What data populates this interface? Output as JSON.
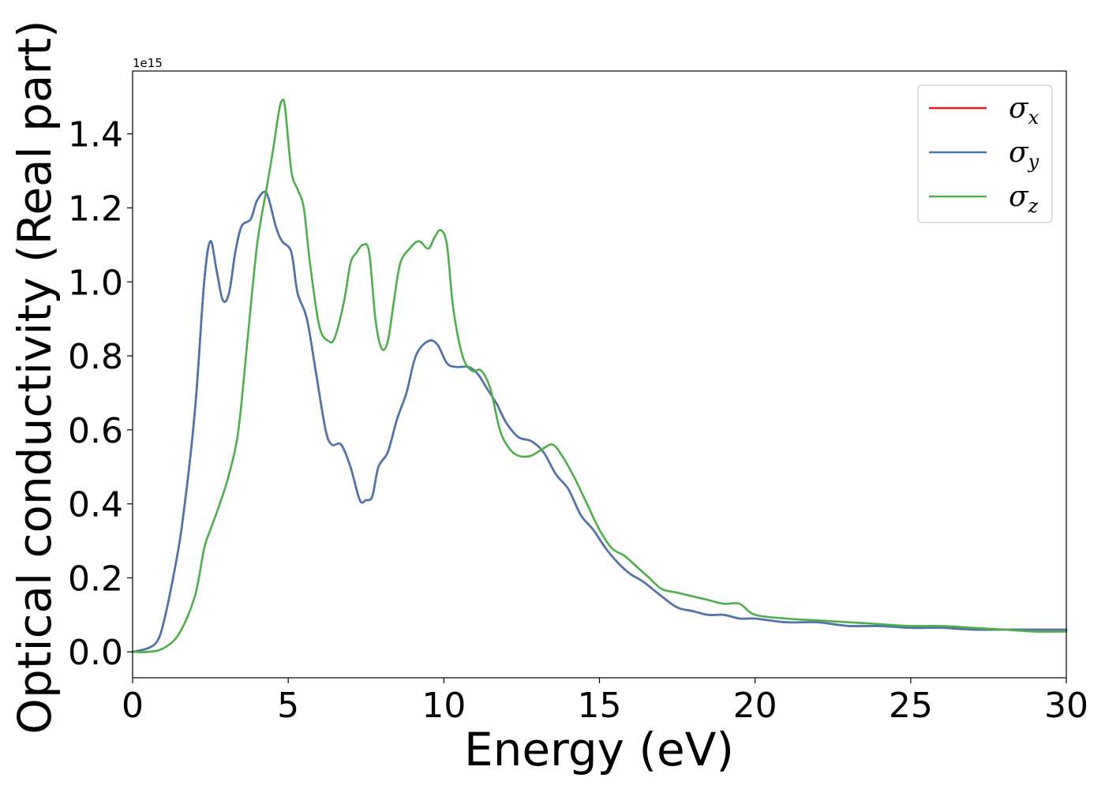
{
  "chart_data": {
    "type": "line",
    "xlabel": "Energy (eV)",
    "ylabel": "Optical conductivity (Real part)",
    "y_offset_text": "1e15",
    "xlim": [
      0,
      30
    ],
    "ylim": [
      -0.07,
      1.57
    ],
    "x_ticks": [
      0,
      5,
      10,
      15,
      20,
      25,
      30
    ],
    "x_tick_labels": [
      "0",
      "5",
      "10",
      "15",
      "20",
      "25",
      "30"
    ],
    "y_ticks": [
      0.0,
      0.2,
      0.4,
      0.6,
      0.8,
      1.0,
      1.2,
      1.4
    ],
    "y_tick_labels": [
      "0.0",
      "0.2",
      "0.4",
      "0.6",
      "0.8",
      "1.0",
      "1.2",
      "1.4"
    ],
    "grid": false,
    "legend_position": "top-right",
    "series": [
      {
        "name": "σx",
        "symbol": "σ",
        "subscript": "x",
        "color": "#e41a1c",
        "x": [
          0,
          0.5,
          0.8,
          1.0,
          1.3,
          1.6,
          2.0,
          2.3,
          2.5,
          2.7,
          2.9,
          3.1,
          3.3,
          3.5,
          3.8,
          4.0,
          4.3,
          4.6,
          4.8,
          5.1,
          5.3,
          5.6,
          5.9,
          6.2,
          6.4,
          6.7,
          7.0,
          7.3,
          7.5,
          7.7,
          7.9,
          8.2,
          8.5,
          8.8,
          9.1,
          9.5,
          9.8,
          10.1,
          10.4,
          10.8,
          11.1,
          11.4,
          11.7,
          12.0,
          12.4,
          12.8,
          13.2,
          13.6,
          14.0,
          14.4,
          14.8,
          15.2,
          15.6,
          16.0,
          16.4,
          17.0,
          17.5,
          18.0,
          18.5,
          19.0,
          19.5,
          20.0,
          21.0,
          22.0,
          23.0,
          24.0,
          25.0,
          26.0,
          27.0,
          28.0,
          29.0,
          30.0
        ],
        "y": [
          0.0,
          0.01,
          0.03,
          0.08,
          0.2,
          0.35,
          0.65,
          1.0,
          1.11,
          1.03,
          0.95,
          0.97,
          1.08,
          1.15,
          1.17,
          1.22,
          1.24,
          1.15,
          1.11,
          1.08,
          0.97,
          0.9,
          0.75,
          0.6,
          0.56,
          0.56,
          0.5,
          0.41,
          0.41,
          0.42,
          0.5,
          0.54,
          0.63,
          0.7,
          0.8,
          0.84,
          0.83,
          0.78,
          0.77,
          0.77,
          0.75,
          0.71,
          0.67,
          0.62,
          0.58,
          0.57,
          0.54,
          0.48,
          0.44,
          0.37,
          0.33,
          0.28,
          0.24,
          0.21,
          0.19,
          0.15,
          0.12,
          0.11,
          0.1,
          0.1,
          0.09,
          0.09,
          0.08,
          0.08,
          0.07,
          0.07,
          0.065,
          0.065,
          0.06,
          0.06,
          0.06,
          0.06
        ]
      },
      {
        "name": "σy",
        "symbol": "σ",
        "subscript": "y",
        "color": "#4a77b0",
        "x": [
          0,
          0.5,
          0.8,
          1.0,
          1.3,
          1.6,
          2.0,
          2.3,
          2.5,
          2.7,
          2.9,
          3.1,
          3.3,
          3.5,
          3.8,
          4.0,
          4.3,
          4.6,
          4.8,
          5.1,
          5.3,
          5.6,
          5.9,
          6.2,
          6.4,
          6.7,
          7.0,
          7.3,
          7.5,
          7.7,
          7.9,
          8.2,
          8.5,
          8.8,
          9.1,
          9.5,
          9.8,
          10.1,
          10.4,
          10.8,
          11.1,
          11.4,
          11.7,
          12.0,
          12.4,
          12.8,
          13.2,
          13.6,
          14.0,
          14.4,
          14.8,
          15.2,
          15.6,
          16.0,
          16.4,
          17.0,
          17.5,
          18.0,
          18.5,
          19.0,
          19.5,
          20.0,
          21.0,
          22.0,
          23.0,
          24.0,
          25.0,
          26.0,
          27.0,
          28.0,
          29.0,
          30.0
        ],
        "y": [
          0.0,
          0.01,
          0.03,
          0.08,
          0.2,
          0.35,
          0.65,
          1.0,
          1.11,
          1.03,
          0.95,
          0.97,
          1.08,
          1.15,
          1.17,
          1.22,
          1.24,
          1.15,
          1.11,
          1.08,
          0.97,
          0.9,
          0.75,
          0.6,
          0.56,
          0.56,
          0.5,
          0.41,
          0.41,
          0.42,
          0.5,
          0.54,
          0.63,
          0.7,
          0.8,
          0.84,
          0.83,
          0.78,
          0.77,
          0.77,
          0.75,
          0.71,
          0.67,
          0.62,
          0.58,
          0.57,
          0.54,
          0.48,
          0.44,
          0.37,
          0.33,
          0.28,
          0.24,
          0.21,
          0.19,
          0.15,
          0.12,
          0.11,
          0.1,
          0.1,
          0.09,
          0.09,
          0.08,
          0.08,
          0.07,
          0.07,
          0.065,
          0.065,
          0.06,
          0.06,
          0.06,
          0.06
        ]
      },
      {
        "name": "σz",
        "symbol": "σ",
        "subscript": "z",
        "color": "#4daf4a",
        "x": [
          0,
          0.5,
          1.0,
          1.5,
          2.0,
          2.3,
          2.5,
          2.8,
          3.1,
          3.4,
          3.7,
          4.0,
          4.3,
          4.5,
          4.7,
          4.8,
          4.9,
          5.1,
          5.3,
          5.5,
          5.7,
          6.0,
          6.3,
          6.5,
          6.8,
          7.0,
          7.2,
          7.4,
          7.6,
          7.8,
          8.0,
          8.2,
          8.4,
          8.6,
          8.9,
          9.2,
          9.5,
          9.7,
          9.9,
          10.1,
          10.3,
          10.6,
          10.9,
          11.2,
          11.5,
          11.8,
          12.1,
          12.4,
          12.8,
          13.2,
          13.5,
          13.8,
          14.2,
          14.6,
          15.0,
          15.4,
          15.8,
          16.2,
          16.6,
          17.0,
          17.5,
          18.0,
          18.5,
          19.0,
          19.5,
          20.0,
          21.0,
          22.0,
          23.0,
          24.0,
          25.0,
          26.0,
          27.0,
          28.0,
          29.0,
          30.0
        ],
        "y": [
          0.0,
          0.0,
          0.01,
          0.05,
          0.15,
          0.28,
          0.33,
          0.4,
          0.48,
          0.6,
          0.85,
          1.1,
          1.25,
          1.35,
          1.46,
          1.49,
          1.47,
          1.3,
          1.25,
          1.2,
          1.05,
          0.88,
          0.84,
          0.85,
          0.95,
          1.05,
          1.08,
          1.1,
          1.08,
          0.9,
          0.82,
          0.84,
          0.95,
          1.05,
          1.09,
          1.11,
          1.09,
          1.12,
          1.14,
          1.1,
          0.93,
          0.8,
          0.76,
          0.76,
          0.71,
          0.6,
          0.55,
          0.53,
          0.53,
          0.55,
          0.56,
          0.53,
          0.47,
          0.4,
          0.33,
          0.28,
          0.26,
          0.23,
          0.2,
          0.17,
          0.16,
          0.15,
          0.14,
          0.13,
          0.13,
          0.1,
          0.09,
          0.085,
          0.08,
          0.075,
          0.07,
          0.07,
          0.065,
          0.06,
          0.055,
          0.055
        ]
      }
    ]
  }
}
